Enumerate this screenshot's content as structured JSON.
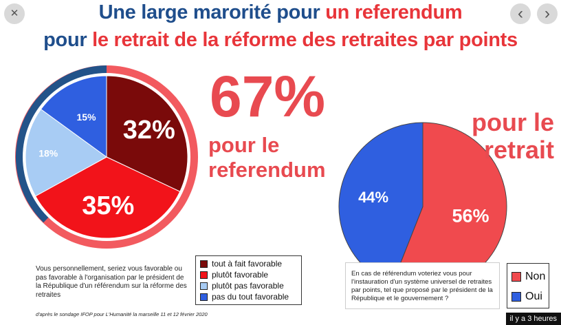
{
  "title": {
    "line1_blue": "Une large marorité pour",
    "line1_red": "un referendum",
    "line2_blue": "pour",
    "line2_red": "le retrait de la réforme des retraites par points"
  },
  "nav": {
    "close": "✕",
    "prev": "‹",
    "next": "›"
  },
  "big_stat": {
    "value": "67%",
    "line1": "pour le",
    "line2": "referendum"
  },
  "right_stat": {
    "line1": "pour le",
    "line2": "retrait"
  },
  "colors": {
    "title_blue": "#1f4e8c",
    "accent_red": "#e84a50",
    "ring_red": "#f25a5f",
    "ring_blue": "#235389"
  },
  "chart_data": [
    {
      "type": "pie",
      "title": "",
      "question": "Vous personnellement, seriez vous favorable ou pas favorable à l'organisation par le président de la République d'un référendum sur la réforme des retraites",
      "series": [
        {
          "name": "tout à fait favorable",
          "value": 32,
          "label": "32%",
          "color": "#7a0a0a"
        },
        {
          "name": "plutôt favorable",
          "value": 35,
          "label": "35%",
          "color": "#f2131a"
        },
        {
          "name": "plutôt pas favorable",
          "value": 18,
          "label": "18%",
          "color": "#a8ccf4"
        },
        {
          "name": "pas du tout favorable",
          "value": 15,
          "label": "15%",
          "color": "#2f5fe0"
        }
      ]
    },
    {
      "type": "pie",
      "title": "",
      "question": "En cas de référendum voteriez vous pour l'instauration d'un système universel de retraites par points, tel que proposé par le président de la République et le gouvernement ?",
      "series": [
        {
          "name": "Non",
          "value": 56,
          "label": "56%",
          "color": "#f04a4e"
        },
        {
          "name": "Oui",
          "value": 44,
          "label": "44%",
          "color": "#2f5fe0"
        }
      ]
    }
  ],
  "source": "d'après le sondage IFOP pour L'Humanité la marseille 11 et 12 février 2020",
  "timestamp": "il y a 3 heures"
}
